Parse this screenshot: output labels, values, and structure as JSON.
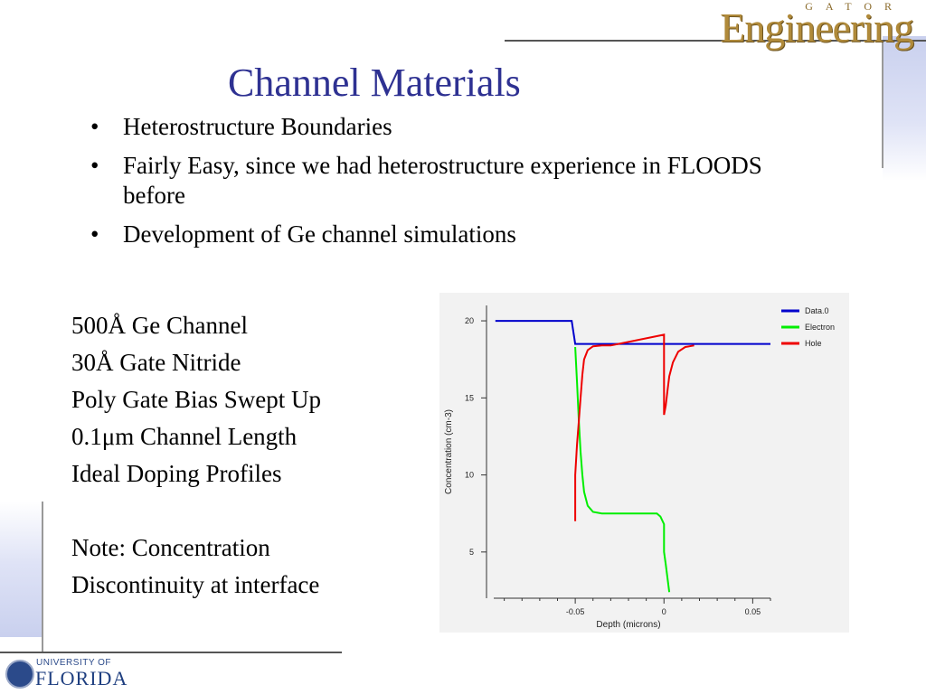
{
  "branding": {
    "top_logo_sub": "GATOR",
    "top_logo_main": "Engineering",
    "bottom_logo_small": "UNIVERSITY OF",
    "bottom_logo_big": "FLORIDA"
  },
  "title": "Channel Materials",
  "bullets": [
    {
      "marker": "•",
      "text": "Heterostructure Boundaries"
    },
    {
      "marker": "•",
      "text": "Fairly Easy, since we had heterostructure experience in FLOODS before"
    },
    {
      "marker": "•",
      "text": "Development of Ge channel simulations"
    }
  ],
  "notes": [
    "500Å Ge Channel",
    "30Å Gate Nitride",
    "Poly Gate Bias Swept Up",
    "0.1μm Channel Length",
    "Ideal Doping Profiles",
    "",
    "Note: Concentration",
    "Discontinuity at interface"
  ],
  "colors": {
    "title": "#2e3192",
    "data0": "#0000cc",
    "electron": "#00ee00",
    "hole": "#ee0000"
  },
  "chart_data": {
    "type": "line",
    "title": "",
    "xlabel": "Depth (microns)",
    "ylabel": "Concentration (cm-3)",
    "xlim": [
      -0.1,
      0.06
    ],
    "ylim": [
      2,
      21
    ],
    "xticks": [
      -0.05,
      0,
      0.05
    ],
    "xtick_labels": [
      "-0.05",
      "0",
      "0.05"
    ],
    "yticks": [
      5,
      10,
      15,
      20
    ],
    "ytick_labels": [
      "5",
      "10",
      "15",
      "20"
    ],
    "legend_position": "top-right",
    "series": [
      {
        "name": "Data.0",
        "color": "#0000cc",
        "x": [
          -0.095,
          -0.052,
          -0.05,
          0.06
        ],
        "y": [
          20.0,
          20.0,
          18.5,
          18.5
        ]
      },
      {
        "name": "Electron",
        "color": "#00ee00",
        "x": [
          -0.05,
          -0.049,
          -0.048,
          -0.047,
          -0.046,
          -0.045,
          -0.043,
          -0.04,
          -0.035,
          -0.03,
          -0.02,
          -0.01,
          -0.004,
          -0.002,
          0.0,
          0.0,
          0.001,
          0.003
        ],
        "y": [
          18.3,
          16.0,
          13.5,
          11.5,
          10.0,
          8.9,
          8.0,
          7.6,
          7.5,
          7.5,
          7.5,
          7.5,
          7.5,
          7.3,
          6.8,
          5.0,
          4.2,
          2.4
        ]
      },
      {
        "name": "Hole",
        "color": "#ee0000",
        "x": [
          -0.05,
          -0.05,
          -0.049,
          -0.048,
          -0.047,
          -0.046,
          -0.045,
          -0.043,
          -0.04,
          -0.035,
          -0.03,
          0.0,
          0.0,
          0.001,
          0.002,
          0.003,
          0.005,
          0.008,
          0.012,
          0.017
        ],
        "y": [
          7.0,
          10.0,
          12.0,
          13.5,
          15.0,
          16.5,
          17.5,
          18.1,
          18.35,
          18.4,
          18.4,
          19.1,
          13.9,
          14.5,
          15.5,
          16.4,
          17.3,
          18.0,
          18.3,
          18.4
        ]
      }
    ]
  }
}
